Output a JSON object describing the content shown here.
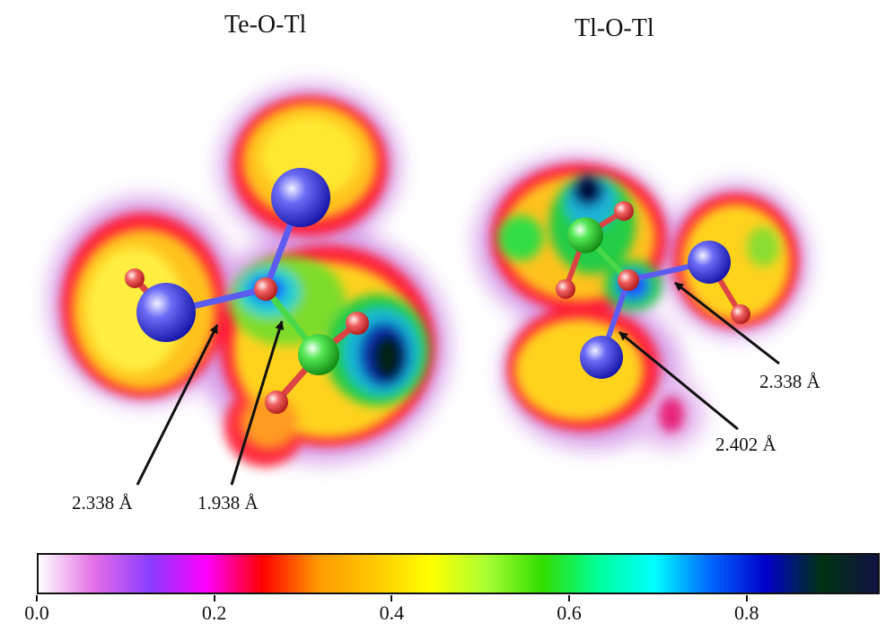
{
  "panels": [
    {
      "title": "Te-O-Tl",
      "distances": [
        "2.338 Å",
        "1.938 Å"
      ]
    },
    {
      "title": "Tl-O-Tl",
      "distances": [
        "2.338 Å",
        "2.402 Å"
      ]
    }
  ],
  "atoms": {
    "Tl": "#3434e0",
    "Te": "#33dd33",
    "O": "#ee4a4a"
  },
  "colorbar": {
    "ticks": [
      "0.0",
      "0.2",
      "0.4",
      "0.6",
      "0.8"
    ],
    "range": [
      0,
      0.95
    ],
    "colors": [
      "#ffffff",
      "#e26ee6",
      "#8a3cff",
      "#ff00ff",
      "#ff0000",
      "#ff9a00",
      "#ffc800",
      "#ffff00",
      "#aaff33",
      "#33dd00",
      "#00ff99",
      "#00ffff",
      "#0066ff",
      "#0000cc",
      "#003311",
      "#111144"
    ]
  }
}
